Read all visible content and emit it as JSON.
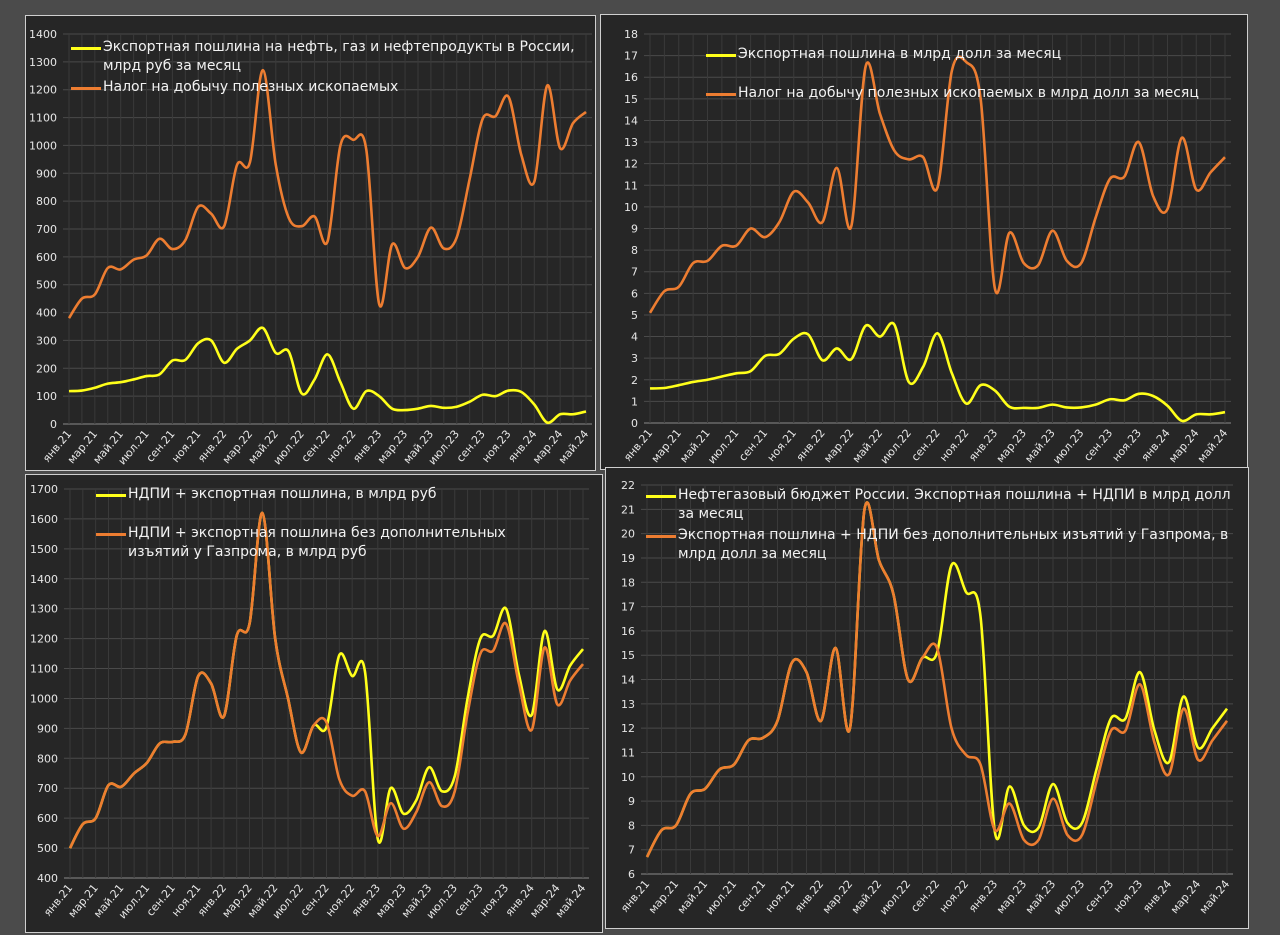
{
  "colors": {
    "yellow": "#ffff1a",
    "orange": "#ed7d31",
    "panel_bg": "#262626",
    "grid": "#4a4a4a"
  },
  "chart_data": [
    {
      "type": "line",
      "x_tick_labels": [
        "янв.21",
        "мар.21",
        "май.21",
        "июл.21",
        "сен.21",
        "ноя.21",
        "янв.22",
        "мар.22",
        "май.22",
        "июл.22",
        "сен.22",
        "ноя.22",
        "янв.23",
        "мар.23",
        "май.23",
        "июл.23",
        "сен.23",
        "ноя.23",
        "янв.24",
        "мар.24",
        "май.24"
      ],
      "ylim": [
        0,
        1400
      ],
      "y_step": 100,
      "grid": true,
      "legend": "top",
      "series": [
        {
          "name": "Экспортная пошлина на нефть, газ и нефтепродукты в России, млрд руб за месяц",
          "color": "#ffff1a",
          "values": [
            118,
            120,
            130,
            145,
            150,
            160,
            172,
            178,
            228,
            230,
            290,
            300,
            220,
            270,
            300,
            345,
            255,
            260,
            110,
            160,
            250,
            150,
            55,
            118,
            100,
            55,
            50,
            55,
            65,
            58,
            62,
            80,
            105,
            100,
            120,
            115,
            70,
            5,
            35,
            35,
            45
          ]
        },
        {
          "name": "Налог на добычу полезных ископаемых",
          "color": "#ed7d31",
          "values": [
            380,
            450,
            465,
            560,
            555,
            590,
            605,
            665,
            628,
            660,
            780,
            755,
            710,
            930,
            940,
            1270,
            930,
            740,
            710,
            745,
            655,
            1000,
            1020,
            985,
            430,
            645,
            560,
            600,
            705,
            630,
            670,
            880,
            1095,
            1105,
            1175,
            965,
            870,
            1215,
            990,
            1080,
            1120
          ]
        }
      ]
    },
    {
      "type": "line",
      "x_tick_labels": [
        "янв.21",
        "мар.21",
        "май.21",
        "июл.21",
        "сен.21",
        "ноя.21",
        "янв.22",
        "мар.22",
        "май.22",
        "июл.22",
        "сен.22",
        "ноя.22",
        "янв.23",
        "мар.23",
        "май.23",
        "июл.23",
        "сен.23",
        "ноя.23",
        "янв.24",
        "мар.24",
        "май.24"
      ],
      "ylim": [
        0,
        18
      ],
      "y_step": 1,
      "grid": true,
      "legend": "top",
      "series": [
        {
          "name": "Экспортная пошлина в млрд долл за месяц",
          "color": "#ffff1a",
          "values": [
            1.6,
            1.62,
            1.75,
            1.9,
            2.0,
            2.15,
            2.3,
            2.4,
            3.1,
            3.2,
            3.9,
            4.1,
            2.9,
            3.45,
            2.95,
            4.5,
            4.0,
            4.55,
            1.9,
            2.6,
            4.15,
            2.3,
            0.9,
            1.75,
            1.5,
            0.75,
            0.7,
            0.7,
            0.85,
            0.72,
            0.72,
            0.85,
            1.1,
            1.05,
            1.35,
            1.25,
            0.8,
            0.1,
            0.4,
            0.4,
            0.5
          ]
        },
        {
          "name": "Налог на добычу полезных ископаемых в млрд долл за месяц",
          "color": "#ed7d31",
          "values": [
            5.1,
            6.1,
            6.3,
            7.4,
            7.5,
            8.2,
            8.2,
            9.0,
            8.6,
            9.3,
            10.7,
            10.2,
            9.3,
            11.8,
            9.1,
            16.5,
            14.3,
            12.6,
            12.2,
            12.3,
            10.9,
            16.3,
            16.7,
            15.0,
            6.2,
            8.8,
            7.4,
            7.3,
            8.9,
            7.5,
            7.4,
            9.5,
            11.3,
            11.4,
            13.0,
            10.5,
            9.9,
            13.2,
            10.8,
            11.6,
            12.3
          ]
        }
      ]
    },
    {
      "type": "line",
      "x_tick_labels": [
        "янв.21",
        "мар.21",
        "май.21",
        "июл.21",
        "сен.21",
        "ноя.21",
        "янв.22",
        "мар.22",
        "май.22",
        "июл.22",
        "сен.22",
        "ноя.22",
        "янв.23",
        "мар.23",
        "май.23",
        "июл.23",
        "сен.23",
        "ноя.23",
        "янв.24",
        "мар.24",
        "май.24"
      ],
      "ylim": [
        400,
        1700
      ],
      "y_step": 100,
      "grid": true,
      "legend": "top",
      "series": [
        {
          "name": "НДПИ + экспортная пошлина, в млрд руб",
          "color": "#ffff1a",
          "values": [
            500,
            580,
            600,
            710,
            705,
            750,
            785,
            850,
            855,
            880,
            1075,
            1050,
            940,
            1210,
            1250,
            1620,
            1200,
            1000,
            820,
            910,
            905,
            1145,
            1075,
            1090,
            530,
            700,
            615,
            660,
            770,
            690,
            740,
            1000,
            1200,
            1210,
            1300,
            1080,
            945,
            1225,
            1030,
            1110,
            1165
          ]
        },
        {
          "name": "НДПИ + экспортная пошлина без дополнительных изъятий у Газпрома, в млрд руб",
          "color": "#ed7d31",
          "values": [
            500,
            580,
            600,
            710,
            705,
            750,
            785,
            850,
            855,
            880,
            1075,
            1050,
            940,
            1210,
            1250,
            1620,
            1200,
            1000,
            820,
            910,
            920,
            730,
            675,
            690,
            540,
            650,
            565,
            620,
            720,
            640,
            690,
            950,
            1150,
            1160,
            1250,
            1050,
            895,
            1170,
            980,
            1060,
            1115
          ]
        }
      ]
    },
    {
      "type": "line",
      "x_tick_labels": [
        "янв.21",
        "мар.21",
        "май.21",
        "июл.21",
        "сен.21",
        "ноя.21",
        "янв.22",
        "мар.22",
        "май.22",
        "июл.22",
        "сен.22",
        "ноя.22",
        "янв.23",
        "мар.23",
        "май.23",
        "июл.23",
        "сен.23",
        "ноя.23",
        "янв.24",
        "мар.24",
        "май.24"
      ],
      "ylim": [
        6,
        22
      ],
      "y_step": 1,
      "grid": true,
      "legend": "top",
      "series": [
        {
          "name": "Нефтегазовый бюджет России. Экспортная пошлина + НДПИ в млрд долл за месяц",
          "color": "#ffff1a",
          "values": [
            6.7,
            7.8,
            8.0,
            9.3,
            9.5,
            10.3,
            10.5,
            11.5,
            11.6,
            12.3,
            14.7,
            14.3,
            12.3,
            15.3,
            12.0,
            21.0,
            18.9,
            17.5,
            14.0,
            14.9,
            15.1,
            18.7,
            17.6,
            16.6,
            7.7,
            9.6,
            8.0,
            7.9,
            9.7,
            8.1,
            8.1,
            10.3,
            12.4,
            12.4,
            14.3,
            11.9,
            10.6,
            13.3,
            11.2,
            12.0,
            12.8
          ]
        },
        {
          "name": "Экспортная пошлина + НДПИ без дополнительных изъятий у Газпрома, в млрд долл за месяц",
          "color": "#ed7d31",
          "values": [
            6.7,
            7.8,
            8.0,
            9.3,
            9.5,
            10.3,
            10.5,
            11.5,
            11.6,
            12.3,
            14.7,
            14.3,
            12.3,
            15.3,
            12.0,
            21.0,
            18.9,
            17.5,
            14.0,
            14.9,
            15.3,
            12.0,
            10.9,
            10.5,
            7.8,
            8.9,
            7.4,
            7.4,
            9.1,
            7.6,
            7.6,
            9.8,
            11.9,
            11.9,
            13.8,
            11.4,
            10.1,
            12.8,
            10.7,
            11.5,
            12.3
          ]
        }
      ]
    }
  ]
}
